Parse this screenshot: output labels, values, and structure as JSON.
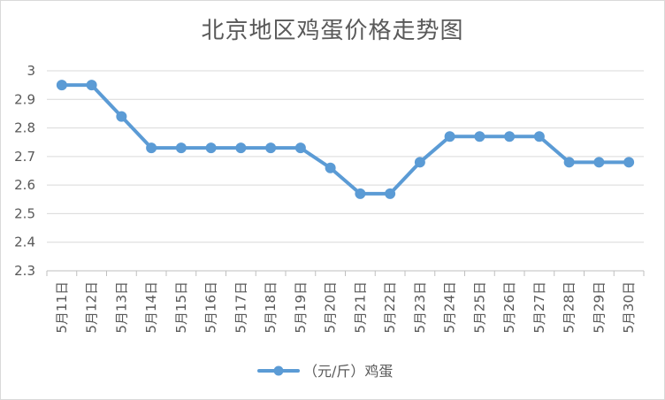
{
  "chart_data": {
    "type": "line",
    "title": "北京地区鸡蛋价格走势图",
    "categories": [
      "5月11日",
      "5月12日",
      "5月13日",
      "5月14日",
      "5月15日",
      "5月16日",
      "5月17日",
      "5月18日",
      "5月19日",
      "5月20日",
      "5月21日",
      "5月22日",
      "5月23日",
      "5月24日",
      "5月25日",
      "5月26日",
      "5月27日",
      "5月28日",
      "5月29日",
      "5月30日"
    ],
    "series": [
      {
        "name": "（元/斤）鸡蛋",
        "color": "#5b9bd5",
        "values": [
          2.95,
          2.95,
          2.84,
          2.73,
          2.73,
          2.73,
          2.73,
          2.73,
          2.73,
          2.66,
          2.57,
          2.57,
          2.68,
          2.77,
          2.77,
          2.77,
          2.77,
          2.68,
          2.68,
          2.68
        ]
      }
    ],
    "y_ticks": [
      "2.3",
      "2.4",
      "2.5",
      "2.6",
      "2.7",
      "2.8",
      "2.9",
      "3"
    ],
    "ylim": [
      2.3,
      3.0
    ],
    "xlabel": "",
    "ylabel": "",
    "grid": "horizontal",
    "legend": "bottom"
  }
}
